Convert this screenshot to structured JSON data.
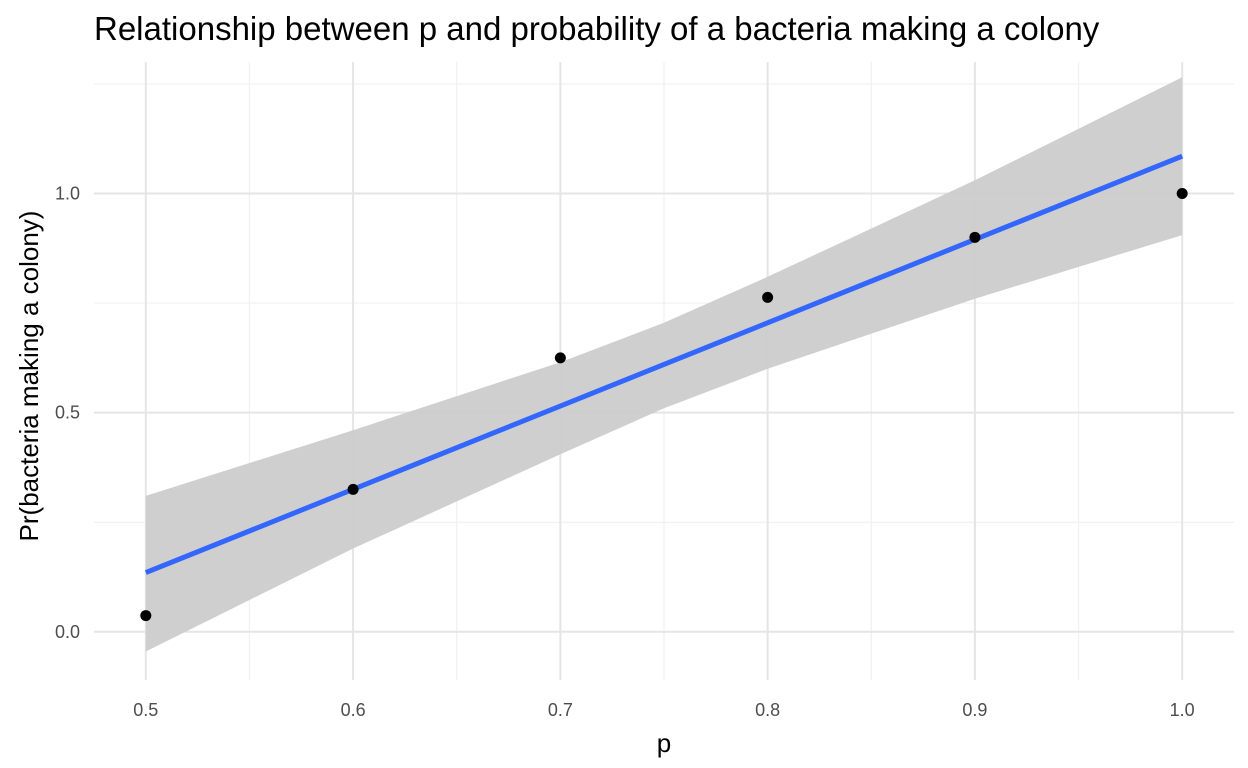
{
  "chart_data": {
    "type": "scatter",
    "title": "Relationship between p and probability of a bacteria making a colony",
    "xlabel": "p",
    "ylabel": "Pr(bacteria making a colony)",
    "xlim": [
      0.475,
      1.025
    ],
    "ylim": [
      -0.11,
      1.3
    ],
    "x_ticks": [
      0.5,
      0.6,
      0.7,
      0.8,
      0.9,
      1.0
    ],
    "x_tick_labels": [
      "0.5",
      "0.6",
      "0.7",
      "0.8",
      "0.9",
      "1.0"
    ],
    "x_minor_ticks": [
      0.55,
      0.65,
      0.75,
      0.85,
      0.95
    ],
    "y_ticks": [
      0.0,
      0.5,
      1.0
    ],
    "y_tick_labels": [
      "0.0",
      "0.5",
      "1.0"
    ],
    "y_minor_ticks": [
      0.25,
      0.75,
      1.25
    ],
    "grid": true,
    "points": {
      "x": [
        0.5,
        0.6,
        0.7,
        0.8,
        0.9,
        1.0
      ],
      "y": [
        0.037,
        0.325,
        0.625,
        0.763,
        0.9,
        1.0
      ],
      "color": "#000000"
    },
    "fit_line": {
      "method": "linear",
      "x": [
        0.5,
        1.0
      ],
      "y": [
        0.135,
        1.085
      ],
      "color": "#3366ff"
    },
    "confidence_band": {
      "x": [
        0.5,
        0.6,
        0.7,
        0.75,
        0.8,
        0.9,
        1.0
      ],
      "lower": [
        -0.045,
        0.19,
        0.405,
        0.51,
        0.6,
        0.76,
        0.905
      ],
      "upper": [
        0.31,
        0.46,
        0.615,
        0.705,
        0.81,
        1.03,
        1.265
      ],
      "color": "#cccccc"
    },
    "colors": {
      "grid_major": "#e5e5e5",
      "grid_minor": "#f0f0f0",
      "tick_text": "#4d4d4d"
    }
  }
}
